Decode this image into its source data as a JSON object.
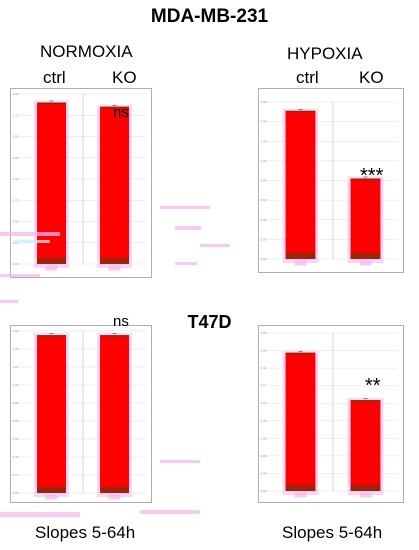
{
  "header": {
    "title": "MDA-MB-231",
    "section2": "T47D"
  },
  "conditions": {
    "normoxia": "NORMOXIA",
    "hypoxia": "HYPOXIA"
  },
  "labels": {
    "ctrl": "ctrl",
    "ko": "KO"
  },
  "footer": {
    "left": "Slopes 5-64h",
    "right": "Slopes 5-64h"
  },
  "colors": {
    "bar": "#ff0000",
    "bar_base": "#8b2a0a",
    "bar_top": "#8b2a0a",
    "glow": "#f5b2f0"
  },
  "chart_data": [
    {
      "id": "mda-normoxia",
      "type": "bar",
      "cell_line": "MDA-MB-231",
      "condition": "NORMOXIA",
      "categories": [
        "ctrl",
        "KO"
      ],
      "values": [
        1.9,
        1.85
      ],
      "ylim": [
        0,
        2.0
      ],
      "significance": "ns"
    },
    {
      "id": "mda-hypoxia",
      "type": "bar",
      "cell_line": "MDA-MB-231",
      "condition": "HYPOXIA",
      "categories": [
        "ctrl",
        "KO"
      ],
      "values": [
        1.51,
        0.82
      ],
      "ylim": [
        0,
        1.6
      ],
      "significance": "***"
    },
    {
      "id": "t47d-normoxia",
      "type": "bar",
      "cell_line": "T47D",
      "condition": "NORMOXIA",
      "categories": [
        "ctrl",
        "KO"
      ],
      "values": [
        1.51,
        1.51
      ],
      "ylim": [
        0,
        1.55
      ],
      "significance": "ns"
    },
    {
      "id": "t47d-hypoxia",
      "type": "bar",
      "cell_line": "T47D",
      "condition": "HYPOXIA",
      "categories": [
        "ctrl",
        "KO"
      ],
      "values": [
        3.5,
        2.3
      ],
      "ylim": [
        0,
        4.0
      ],
      "significance": "**"
    }
  ]
}
